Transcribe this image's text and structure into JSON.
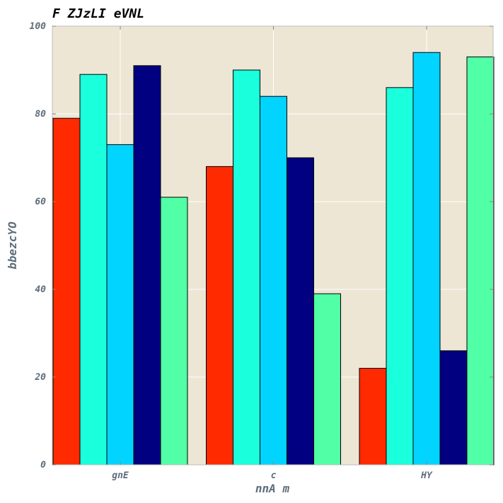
{
  "chart_data": {
    "type": "bar",
    "title": "F ZJzLI eVNL",
    "xlabel": "nnA m",
    "ylabel": "bbezcYO",
    "categories": [
      "gnE",
      "c",
      "HY"
    ],
    "series": [
      {
        "color": "#ff2a00",
        "values": [
          79,
          68,
          22
        ]
      },
      {
        "color": "#1affdc",
        "values": [
          89,
          90,
          86
        ]
      },
      {
        "color": "#00d4ff",
        "values": [
          73,
          84,
          94
        ]
      },
      {
        "color": "#000080",
        "values": [
          91,
          70,
          26
        ]
      },
      {
        "color": "#51ffa6",
        "values": [
          61,
          39,
          93
        ]
      }
    ],
    "ylim": [
      0,
      100
    ],
    "yticks": [
      "0",
      "20",
      "40",
      "60",
      "80",
      "100"
    ],
    "grid": true,
    "legend": "none",
    "background_color": "#ede6d4"
  }
}
